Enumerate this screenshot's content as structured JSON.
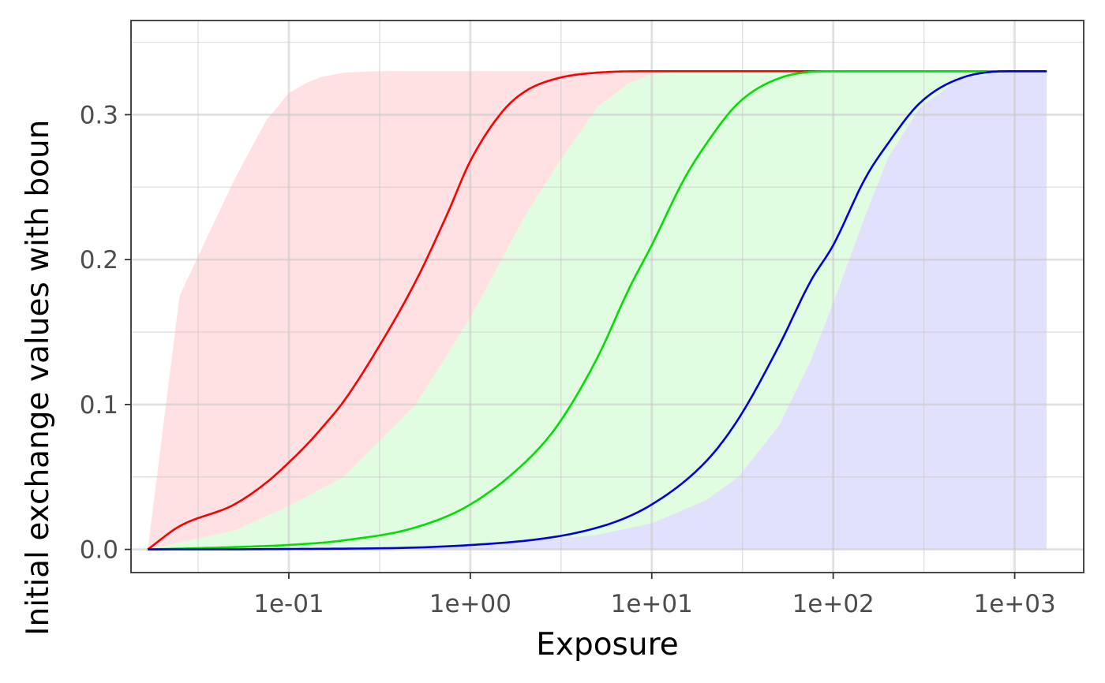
{
  "chart_data": {
    "type": "line",
    "title": "",
    "xlabel": "Exposure",
    "ylabel": "Initial exchange values with boun",
    "x_scale": "log10",
    "xlim": [
      0.0135,
      2400
    ],
    "ylim": [
      -0.016,
      0.365
    ],
    "x_ticks": [
      0.1,
      1,
      10,
      100,
      1000
    ],
    "x_tick_labels": [
      "1e-01",
      "1e+00",
      "1e+01",
      "1e+02",
      "1e+03"
    ],
    "y_ticks": [
      0.0,
      0.1,
      0.2,
      0.3
    ],
    "y_tick_labels": [
      "0.0",
      "0.1",
      "0.2",
      "0.3"
    ],
    "grid": true,
    "legend": "none",
    "series": [
      {
        "color": "#ff0000",
        "band_color": "#ffe1e3",
        "x": [
          0.0167,
          0.025,
          0.05,
          0.075,
          0.1,
          0.125,
          0.15,
          0.2,
          0.3,
          0.5,
          0.75,
          1,
          1.5,
          2,
          3,
          5,
          10,
          100,
          1500
        ],
        "y": [
          0.0,
          0.016,
          0.031,
          0.046,
          0.06,
          0.072,
          0.083,
          0.102,
          0.136,
          0.185,
          0.232,
          0.268,
          0.302,
          0.316,
          0.325,
          0.329,
          0.33,
          0.33,
          0.33
        ],
        "band_lower": [
          0.0,
          0.003,
          0.008,
          0.012,
          0.016,
          0.02,
          0.024,
          0.031,
          0.046,
          0.075,
          0.104,
          0.13,
          0.175,
          0.207,
          0.255,
          0.3,
          0.325,
          0.33,
          0.33
        ],
        "band_upper": [
          0.0,
          0.175,
          0.255,
          0.296,
          0.315,
          0.322,
          0.326,
          0.329,
          0.33,
          0.33,
          0.33,
          0.33,
          0.33,
          0.33,
          0.33,
          0.33,
          0.33,
          0.33,
          0.33
        ]
      },
      {
        "color": "#00e000",
        "band_color": "#e1fde1",
        "x": [
          0.0167,
          0.05,
          0.1,
          0.2,
          0.5,
          1,
          2,
          3,
          5,
          7.5,
          10,
          15,
          20,
          30,
          50,
          100,
          1500
        ],
        "y": [
          0.0,
          0.0016,
          0.0031,
          0.0062,
          0.0152,
          0.031,
          0.06,
          0.085,
          0.132,
          0.18,
          0.21,
          0.255,
          0.28,
          0.308,
          0.325,
          0.33,
          0.33
        ],
        "band_lower": [
          0.0,
          0.0,
          0.0,
          0.0,
          0.0,
          0.0,
          0.0,
          0.0,
          0.0,
          0.0,
          0.0,
          0.0,
          0.0,
          0.0,
          0.0,
          0.0,
          0.0
        ],
        "band_upper": [
          0.0,
          0.013,
          0.03,
          0.05,
          0.1,
          0.16,
          0.23,
          0.265,
          0.305,
          0.322,
          0.328,
          0.33,
          0.33,
          0.33,
          0.33,
          0.33,
          0.33
        ]
      },
      {
        "color": "#0000e0",
        "band_color": "#e1e1fd",
        "x": [
          0.0167,
          0.1,
          1,
          5,
          10,
          20,
          30,
          50,
          75,
          100,
          150,
          200,
          300,
          500,
          1000,
          1500
        ],
        "y": [
          0.0,
          0.0003,
          0.003,
          0.015,
          0.031,
          0.061,
          0.09,
          0.14,
          0.185,
          0.21,
          0.256,
          0.28,
          0.308,
          0.325,
          0.33,
          0.33
        ],
        "band_lower": [
          0.0,
          0.0,
          0.0,
          0.0,
          0.0,
          0.0,
          0.0,
          0.0,
          0.0,
          0.0,
          0.0,
          0.0,
          0.0,
          0.0,
          0.0,
          0.0
        ],
        "band_upper": [
          0.0,
          0.0002,
          0.002,
          0.01,
          0.018,
          0.034,
          0.05,
          0.085,
          0.13,
          0.17,
          0.23,
          0.27,
          0.305,
          0.325,
          0.33,
          0.33
        ]
      }
    ]
  }
}
